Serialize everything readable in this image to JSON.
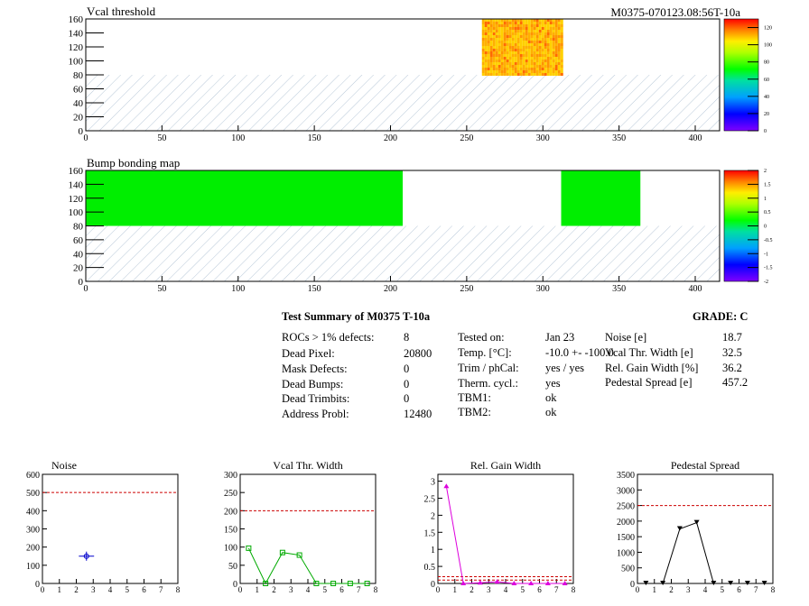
{
  "header_id": "M0375-070123.08:56T-10a",
  "colors": {
    "green": "#00ee00",
    "grade_line": "#cc0000",
    "hatch": "#b8c8d8"
  },
  "chart_data": [
    {
      "type": "heatmap",
      "title": "Vcal threshold",
      "xlim": [
        0,
        416
      ],
      "ylim": [
        0,
        160
      ],
      "xticks": [
        0,
        50,
        100,
        150,
        200,
        250,
        300,
        350,
        400
      ],
      "yticks": [
        0,
        20,
        40,
        60,
        80,
        100,
        120,
        140,
        160
      ],
      "colorbar": {
        "min": 0,
        "max": 130,
        "ticks": [
          0,
          20,
          40,
          60,
          80,
          100,
          120
        ]
      },
      "regions": [
        {
          "x": [
            0,
            416
          ],
          "y": [
            0,
            80
          ],
          "fill": "hatch"
        },
        {
          "x": [
            260,
            312
          ],
          "y": [
            80,
            160
          ],
          "value_range": [
            95,
            120
          ],
          "fill": "noise"
        }
      ]
    },
    {
      "type": "heatmap",
      "title": "Bump bonding map",
      "xlim": [
        0,
        416
      ],
      "ylim": [
        0,
        160
      ],
      "xticks": [
        0,
        50,
        100,
        150,
        200,
        250,
        300,
        350,
        400
      ],
      "yticks": [
        0,
        20,
        40,
        60,
        80,
        100,
        120,
        140,
        160
      ],
      "colorbar": {
        "min": -2,
        "max": 2,
        "ticks": [
          "2",
          "1.5",
          "1",
          "0.5",
          "0",
          "-0.5",
          "-1",
          "-1.5",
          "-2"
        ]
      },
      "regions": [
        {
          "x": [
            0,
            416
          ],
          "y": [
            0,
            80
          ],
          "fill": "hatch"
        },
        {
          "x": [
            0,
            208
          ],
          "y": [
            80,
            160
          ],
          "value": 0
        },
        {
          "x": [
            312,
            364
          ],
          "y": [
            80,
            160
          ],
          "value": 0
        }
      ]
    },
    {
      "type": "scatter",
      "title": "Noise",
      "xlim": [
        0,
        8
      ],
      "ylim": [
        0,
        600
      ],
      "xticks": [
        0,
        1,
        2,
        3,
        4,
        5,
        6,
        7,
        8
      ],
      "yticks": [
        0,
        100,
        200,
        300,
        400,
        500,
        600
      ],
      "grade_lines": [
        500
      ],
      "series": [
        {
          "x": [
            2.6
          ],
          "y": [
            150
          ],
          "xerr": 0.45,
          "yerr": 25,
          "color": "#0000cc"
        }
      ]
    },
    {
      "type": "line",
      "title": "Vcal Thr. Width",
      "xlim": [
        0,
        8
      ],
      "ylim": [
        0,
        300
      ],
      "xticks": [
        0,
        1,
        2,
        3,
        4,
        5,
        6,
        7,
        8
      ],
      "yticks": [
        0,
        50,
        100,
        150,
        200,
        250,
        300
      ],
      "grade_lines": [
        200
      ],
      "series": [
        {
          "x": [
            0.5,
            1.5,
            2.5,
            3.5,
            4.5,
            5.5,
            6.5,
            7.5
          ],
          "y": [
            97,
            0,
            85,
            78,
            0,
            0,
            0,
            0
          ],
          "color": "#00aa00",
          "marker": "square"
        }
      ]
    },
    {
      "type": "line",
      "title": "Rel. Gain Width",
      "xlim": [
        0,
        8
      ],
      "ylim": [
        0,
        3.2
      ],
      "xticks": [
        0,
        1,
        2,
        3,
        4,
        5,
        6,
        7,
        8
      ],
      "yticks": [
        0,
        0.5,
        1,
        1.5,
        2,
        2.5,
        3
      ],
      "ytick_labels": [
        "0",
        "0.5",
        "1",
        "1.5",
        "2",
        "2.5",
        "3"
      ],
      "grade_lines": [
        0.1,
        0.2
      ],
      "series": [
        {
          "x": [
            0.5,
            1.5,
            2.5,
            3.5,
            4.5,
            5.5,
            6.5,
            7.5
          ],
          "y": [
            2.85,
            0,
            0.02,
            0.05,
            0,
            0,
            0,
            0
          ],
          "color": "#dd00dd",
          "marker": "triangle"
        }
      ]
    },
    {
      "type": "line",
      "title": "Pedestal Spread",
      "xlim": [
        0,
        8
      ],
      "ylim": [
        0,
        3500
      ],
      "xticks": [
        0,
        1,
        2,
        3,
        4,
        5,
        6,
        7,
        8
      ],
      "yticks": [
        0,
        500,
        1000,
        1500,
        2000,
        2500,
        3000,
        3500
      ],
      "grade_lines": [
        2500
      ],
      "series": [
        {
          "x": [
            0.5,
            1.5,
            2.5,
            3.5,
            4.5,
            5.5,
            6.5,
            7.5
          ],
          "y": [
            0,
            0,
            1750,
            1950,
            0,
            0,
            0,
            0
          ],
          "color": "#000000",
          "marker": "triangle-down"
        }
      ]
    }
  ],
  "summary": {
    "title": "Test Summary of M0375     T-10a",
    "grade": "GRADE:  C",
    "col1": [
      {
        "label": "ROCs > 1% defects:",
        "value": "8"
      },
      {
        "label": "Dead Pixel:",
        "value": "20800"
      },
      {
        "label": "Mask Defects:",
        "value": "0"
      },
      {
        "label": "Dead Bumps:",
        "value": "0"
      },
      {
        "label": "Dead Trimbits:",
        "value": "0"
      },
      {
        "label": "Address Probl:",
        "value": "12480"
      }
    ],
    "col2": [
      {
        "label": "Tested on:",
        "value": "Jan 23"
      },
      {
        "label": "Temp. [°C]:",
        "value": "-10.0 +- -100.0"
      },
      {
        "label": "Trim / phCal:",
        "value": "yes / yes"
      },
      {
        "label": "Therm. cycl.:",
        "value": "yes"
      },
      {
        "label": "TBM1:",
        "value": "ok"
      },
      {
        "label": "TBM2:",
        "value": "ok"
      }
    ],
    "col3": [
      {
        "label": "Noise [e]",
        "value": "18.7"
      },
      {
        "label": "Vcal Thr. Width [e]",
        "value": "32.5"
      },
      {
        "label": "Rel. Gain Width [%]",
        "value": "36.2"
      },
      {
        "label": "Pedestal Spread [e]",
        "value": "457.2"
      }
    ]
  }
}
